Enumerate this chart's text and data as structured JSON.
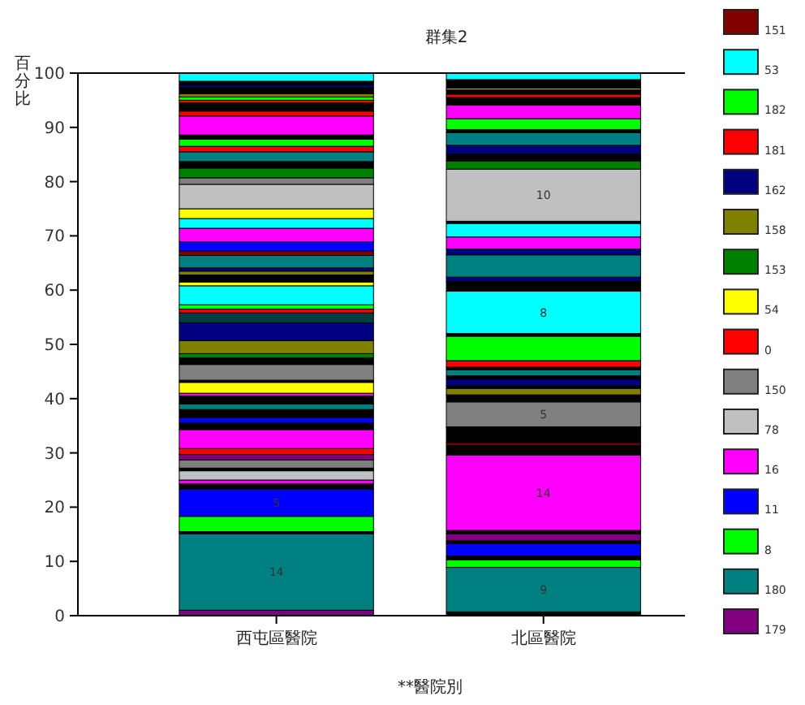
{
  "chart_data": {
    "type": "bar",
    "stacked": true,
    "title": "群集2",
    "xlabel": "**醫院別",
    "ylabel": "百分比",
    "categories": [
      "西屯區醫院",
      "北區醫院"
    ],
    "ylim": [
      0,
      100
    ],
    "yticks": [
      0,
      10,
      20,
      30,
      40,
      50,
      60,
      70,
      80,
      90,
      100
    ],
    "grid": false,
    "legend": "right",
    "annotations": [
      "14",
      "5",
      "9",
      "14",
      "5",
      "8",
      "10"
    ],
    "series": [
      {
        "name": "179",
        "color": "#800080",
        "values": [
          1,
          null
        ]
      },
      {
        "name": "180",
        "color": "#008080",
        "values": [
          14.1,
          null
        ]
      },
      {
        "color": "#000000",
        "values": [
          0.4,
          null
        ]
      },
      {
        "name": "8",
        "color": "#00ff00",
        "values": [
          2.8,
          null
        ]
      },
      {
        "name": "11",
        "color": "#0000ff",
        "values": [
          5,
          null
        ]
      },
      {
        "color": "#000000",
        "values": [
          1,
          null
        ]
      },
      {
        "name": "16",
        "color": "#ff00ff",
        "values": [
          0.7,
          null
        ]
      },
      {
        "name": "78",
        "color": "#c0c0c0",
        "values": [
          1.7,
          null
        ]
      },
      {
        "color": "#000000",
        "values": [
          0.5,
          null
        ]
      },
      {
        "name": "150",
        "color": "#808080",
        "values": [
          1.5,
          null
        ]
      },
      {
        "color": "#800080",
        "values": [
          1,
          null
        ]
      },
      {
        "name": "0",
        "color": "#ff0000",
        "values": [
          1.1,
          null
        ]
      },
      {
        "color": "#ff00ff",
        "values": [
          3.5,
          null
        ]
      },
      {
        "color": "#000000",
        "values": [
          1.2,
          null
        ]
      },
      {
        "color": "#0000ff",
        "values": [
          1,
          null
        ]
      },
      {
        "color": "#000000",
        "values": [
          1.5,
          null
        ]
      },
      {
        "color": "#008080",
        "values": [
          1,
          null
        ]
      },
      {
        "color": "#000000",
        "values": [
          1.5,
          null
        ]
      },
      {
        "color": "#ff00ff",
        "values": [
          0.5,
          null
        ]
      },
      {
        "name": "54",
        "color": "#ffff00",
        "values": [
          2,
          null
        ]
      },
      {
        "color": "#000000",
        "values": [
          0.4,
          null
        ]
      },
      {
        "color": "#808080",
        "values": [
          2.9,
          null
        ]
      },
      {
        "color": "#000000",
        "values": [
          1.2,
          null
        ]
      },
      {
        "name": "153",
        "color": "#008000",
        "values": [
          0.8,
          null
        ]
      },
      {
        "name": "158",
        "color": "#808000",
        "values": [
          2.4,
          null
        ]
      },
      {
        "name": "162",
        "color": "#000080",
        "values": [
          3.3,
          null
        ]
      },
      {
        "color": "#004040",
        "values": [
          1.8,
          null
        ]
      },
      {
        "name": "181",
        "color": "#ff0000",
        "values": [
          0.7,
          null
        ]
      },
      {
        "name": "182",
        "color": "#00ff00",
        "values": [
          0.8,
          null
        ]
      },
      {
        "name": "53",
        "color": "#00ffff",
        "values": [
          3.5,
          null
        ]
      },
      {
        "color": "#ffff00",
        "values": [
          0.7,
          null
        ]
      },
      {
        "color": "#000000",
        "values": [
          1.3,
          null
        ]
      },
      {
        "color": "#808000",
        "values": [
          0.7,
          null
        ]
      },
      {
        "color": "#000080",
        "values": [
          0.6,
          null
        ]
      },
      {
        "color": "#008080",
        "values": [
          2.3,
          null
        ]
      },
      {
        "name": "151",
        "color": "#800000",
        "values": [
          0.8,
          null
        ]
      },
      {
        "color": "#0000ff",
        "values": [
          1.7,
          null
        ]
      },
      {
        "color": "#ff00ff",
        "values": [
          2.5,
          null
        ]
      },
      {
        "color": "#00ffff",
        "values": [
          1.8,
          null
        ]
      },
      {
        "color": "#ffff00",
        "values": [
          1.8,
          null
        ]
      },
      {
        "color": "#c0c0c0",
        "values": [
          4.5,
          null
        ]
      },
      {
        "color": "#808080",
        "values": [
          1.2,
          null
        ]
      },
      {
        "color": "#008000",
        "values": [
          1.8,
          null
        ]
      },
      {
        "color": "#000000",
        "values": [
          1.2,
          null
        ]
      },
      {
        "color": "#008080",
        "values": [
          1.8,
          null
        ]
      },
      {
        "color": "#ff0000",
        "values": [
          1,
          null
        ]
      },
      {
        "color": "#00ff00",
        "values": [
          1.3,
          null
        ]
      },
      {
        "color": "#000000",
        "values": [
          0.8,
          null
        ]
      },
      {
        "color": "#ff00ff",
        "values": [
          3.5,
          null
        ]
      },
      {
        "color": "#ff0000",
        "values": [
          0.9,
          null
        ]
      },
      {
        "color": "#000000",
        "values": [
          1.5,
          null
        ]
      },
      {
        "color": "#ff0000",
        "values": [
          0.5,
          null
        ]
      },
      {
        "color": "#00ff00",
        "values": [
          0.6,
          null
        ]
      },
      {
        "color": "#808000",
        "values": [
          0.6,
          null
        ]
      },
      {
        "color": "#000000",
        "values": [
          1.1,
          null
        ]
      },
      {
        "color": "#000080",
        "values": [
          0.5,
          null
        ]
      },
      {
        "color": "#000000",
        "values": [
          0.7,
          null
        ]
      },
      {
        "color": "#00ffff",
        "values": [
          1.5,
          null
        ]
      },
      {
        "color": "#000000",
        "values": [
          null,
          0.7
        ]
      },
      {
        "color": "#008080",
        "values": [
          null,
          8.2
        ]
      },
      {
        "color": "#00ff00",
        "values": [
          null,
          1.4
        ]
      },
      {
        "color": "#000000",
        "values": [
          null,
          0.7
        ]
      },
      {
        "color": "#0000ff",
        "values": [
          null,
          2.3
        ]
      },
      {
        "color": "#000000",
        "values": [
          null,
          0.5
        ]
      },
      {
        "color": "#800080",
        "values": [
          null,
          1.3
        ]
      },
      {
        "color": "#000000",
        "values": [
          null,
          0.6
        ]
      },
      {
        "color": "#ff00ff",
        "values": [
          null,
          13.9
        ]
      },
      {
        "color": "#000000",
        "values": [
          null,
          1.8
        ]
      },
      {
        "color": "#800000",
        "values": [
          null,
          0.5
        ]
      },
      {
        "color": "#000000",
        "values": [
          null,
          2.9
        ]
      },
      {
        "color": "#808080",
        "values": [
          null,
          4.6
        ]
      },
      {
        "color": "#000000",
        "values": [
          null,
          1.3
        ]
      },
      {
        "color": "#808000",
        "values": [
          null,
          1.2
        ]
      },
      {
        "color": "#000000",
        "values": [
          null,
          0.5
        ]
      },
      {
        "color": "#000080",
        "values": [
          null,
          1.2
        ]
      },
      {
        "color": "#000000",
        "values": [
          null,
          0.6
        ]
      },
      {
        "color": "#008080",
        "values": [
          null,
          1.1
        ]
      },
      {
        "color": "#000000",
        "values": [
          null,
          0.5
        ]
      },
      {
        "color": "#ff0000",
        "values": [
          null,
          1.2
        ]
      },
      {
        "color": "#00ff00",
        "values": [
          null,
          4.5
        ]
      },
      {
        "color": "#000000",
        "values": [
          null,
          0.5
        ]
      },
      {
        "color": "#00ffff",
        "values": [
          null,
          7.8
        ]
      },
      {
        "color": "#000000",
        "values": [
          null,
          1.8
        ]
      },
      {
        "color": "#000080",
        "values": [
          null,
          0.8
        ]
      },
      {
        "color": "#008080",
        "values": [
          null,
          4.1
        ]
      },
      {
        "color": "#000080",
        "values": [
          null,
          1.1
        ]
      },
      {
        "color": "#ff00ff",
        "values": [
          null,
          2.2
        ]
      },
      {
        "color": "#00ffff",
        "values": [
          null,
          2.5
        ]
      },
      {
        "color": "#000000",
        "values": [
          null,
          0.4
        ]
      },
      {
        "color": "#c0c0c0",
        "values": [
          null,
          9.6
        ]
      },
      {
        "color": "#008000",
        "values": [
          null,
          1.5
        ]
      },
      {
        "color": "#000000",
        "values": [
          null,
          1.3
        ]
      },
      {
        "color": "#000080",
        "values": [
          null,
          1.6
        ]
      },
      {
        "color": "#008080",
        "values": [
          null,
          2.3
        ]
      },
      {
        "color": "#000000",
        "values": [
          null,
          0.6
        ]
      },
      {
        "color": "#00ff00",
        "values": [
          null,
          2
        ]
      },
      {
        "color": "#ff00ff",
        "values": [
          null,
          2.5
        ]
      },
      {
        "color": "#000000",
        "values": [
          null,
          1.4
        ]
      },
      {
        "color": "#ff0000",
        "values": [
          null,
          0.6
        ]
      },
      {
        "color": "#000000",
        "values": [
          null,
          0.8
        ]
      },
      {
        "color": "#ffff00",
        "values": [
          null,
          0.3
        ]
      },
      {
        "color": "#000000",
        "values": [
          null,
          1.6
        ]
      },
      {
        "color": "#00ffff",
        "values": [
          null,
          1.2
        ]
      }
    ]
  }
}
